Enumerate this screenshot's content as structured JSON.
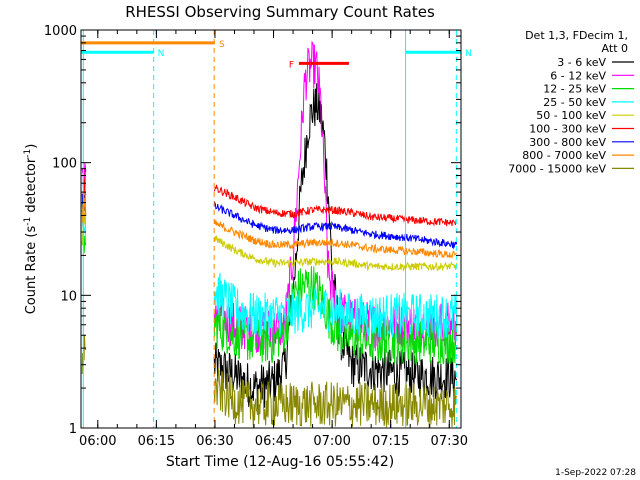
{
  "chart_data": {
    "type": "line",
    "title": "RHESSI Observing Summary Count Rates",
    "xlabel": "Start Time (12-Aug-16 05:55:42)",
    "ylabel_parts": [
      "Count Rate (s",
      "-1",
      " detector",
      "-1",
      ")"
    ],
    "yscale": "log",
    "ylim": [
      1,
      1000
    ],
    "xlim_minutes": [
      355.7,
      453
    ],
    "x_ticks": [
      {
        "label": "06:00",
        "min": 360
      },
      {
        "label": "06:15",
        "min": 375
      },
      {
        "label": "06:30",
        "min": 390
      },
      {
        "label": "06:45",
        "min": 405
      },
      {
        "label": "07:00",
        "min": 420
      },
      {
        "label": "07:15",
        "min": 435
      },
      {
        "label": "07:30",
        "min": 450
      }
    ],
    "y_ticks": [
      {
        "label": "1",
        "value": 1
      },
      {
        "label": "10",
        "value": 10
      },
      {
        "label": "100",
        "value": 100
      },
      {
        "label": "1000",
        "value": 1000
      }
    ],
    "legend": {
      "placement": "top-right",
      "header": [
        "Det 1,3, FDecim 1,",
        "Att 0"
      ],
      "entries": [
        {
          "label": "3 - 6 keV",
          "color": "#000000"
        },
        {
          "label": "6 - 12 keV",
          "color": "#ff00ff"
        },
        {
          "label": "12 - 25 keV",
          "color": "#00dd00"
        },
        {
          "label": "25 - 50 keV",
          "color": "#00ffff"
        },
        {
          "label": "50 - 100 keV",
          "color": "#cccc00"
        },
        {
          "label": "100 - 300 keV",
          "color": "#ff0000"
        },
        {
          "label": "300 - 800 keV",
          "color": "#0000ff"
        },
        {
          "label": "800 - 7000 keV",
          "color": "#ff8800"
        },
        {
          "label": "7000 - 15000 keV",
          "color": "#888800"
        }
      ]
    },
    "gaps_minutes": [
      [
        357.0,
        389.8
      ],
      [
        452.0,
        453
      ]
    ],
    "series": [
      {
        "name": "3 - 6 keV",
        "color": "#000000",
        "points": [
          [
            389.8,
            3
          ],
          [
            395,
            2.5
          ],
          [
            400,
            2
          ],
          [
            405,
            2.2
          ],
          [
            408,
            3
          ],
          [
            410,
            10
          ],
          [
            412,
            60
          ],
          [
            414,
            200
          ],
          [
            415,
            250
          ],
          [
            416,
            270
          ],
          [
            417,
            240
          ],
          [
            418,
            150
          ],
          [
            419,
            60
          ],
          [
            420,
            15
          ],
          [
            422,
            5
          ],
          [
            425,
            3
          ],
          [
            430,
            2.8
          ],
          [
            440,
            2.5
          ],
          [
            452,
            2.4
          ]
        ]
      },
      {
        "name": "6 - 12 keV",
        "color": "#ff00ff",
        "points": [
          [
            389.8,
            7
          ],
          [
            395,
            6
          ],
          [
            400,
            5.5
          ],
          [
            405,
            5.5
          ],
          [
            408,
            6
          ],
          [
            410,
            20
          ],
          [
            412,
            150
          ],
          [
            413,
            400
          ],
          [
            414,
            520
          ],
          [
            415,
            550
          ],
          [
            416,
            520
          ],
          [
            417,
            300
          ],
          [
            418,
            80
          ],
          [
            419,
            15
          ],
          [
            421,
            8
          ],
          [
            425,
            6.5
          ],
          [
            430,
            6
          ],
          [
            440,
            6
          ],
          [
            452,
            6
          ]
        ]
      },
      {
        "name": "12 - 25 keV",
        "color": "#00dd00",
        "points": [
          [
            389.8,
            6
          ],
          [
            395,
            5
          ],
          [
            400,
            4.5
          ],
          [
            405,
            4.5
          ],
          [
            408,
            5.5
          ],
          [
            410,
            10
          ],
          [
            413,
            12
          ],
          [
            415,
            12
          ],
          [
            417,
            10
          ],
          [
            419,
            7
          ],
          [
            422,
            5
          ],
          [
            430,
            4.5
          ],
          [
            440,
            4.5
          ],
          [
            452,
            4.5
          ]
        ]
      },
      {
        "name": "25 - 50 keV",
        "color": "#00ffff",
        "points": [
          [
            389.8,
            11
          ],
          [
            395,
            8
          ],
          [
            400,
            7
          ],
          [
            405,
            7
          ],
          [
            410,
            7.5
          ],
          [
            415,
            8
          ],
          [
            420,
            8
          ],
          [
            425,
            7
          ],
          [
            430,
            7
          ],
          [
            440,
            7
          ],
          [
            452,
            7
          ]
        ]
      },
      {
        "name": "50 - 100 keV",
        "color": "#cccc00",
        "points": [
          [
            389.8,
            27
          ],
          [
            395,
            22
          ],
          [
            400,
            19
          ],
          [
            405,
            17.5
          ],
          [
            410,
            17.5
          ],
          [
            415,
            18
          ],
          [
            420,
            18
          ],
          [
            425,
            17.5
          ],
          [
            430,
            16.5
          ],
          [
            440,
            16.5
          ],
          [
            452,
            16.5
          ]
        ]
      },
      {
        "name": "100 - 300 keV",
        "color": "#ff0000",
        "points": [
          [
            389.8,
            65
          ],
          [
            395,
            55
          ],
          [
            400,
            46
          ],
          [
            405,
            42
          ],
          [
            410,
            41
          ],
          [
            415,
            44
          ],
          [
            420,
            44
          ],
          [
            425,
            42
          ],
          [
            430,
            39
          ],
          [
            440,
            37
          ],
          [
            452,
            35
          ]
        ]
      },
      {
        "name": "300 - 800 keV",
        "color": "#0000ff",
        "points": [
          [
            389.8,
            47
          ],
          [
            395,
            40
          ],
          [
            400,
            34
          ],
          [
            405,
            31
          ],
          [
            410,
            31
          ],
          [
            415,
            33
          ],
          [
            420,
            33
          ],
          [
            425,
            31
          ],
          [
            430,
            29
          ],
          [
            440,
            27
          ],
          [
            452,
            24
          ]
        ]
      },
      {
        "name": "800 - 7000 keV",
        "color": "#ff8800",
        "points": [
          [
            389.8,
            35
          ],
          [
            395,
            30
          ],
          [
            400,
            26
          ],
          [
            405,
            24
          ],
          [
            410,
            24
          ],
          [
            415,
            25
          ],
          [
            420,
            25
          ],
          [
            425,
            24
          ],
          [
            430,
            22.5
          ],
          [
            440,
            21.5
          ],
          [
            452,
            20
          ]
        ]
      },
      {
        "name": "7000 - 15000 keV",
        "color": "#888800",
        "points": [
          [
            389.8,
            2
          ],
          [
            395,
            1.6
          ],
          [
            400,
            1.5
          ],
          [
            405,
            1.5
          ],
          [
            410,
            1.5
          ],
          [
            420,
            1.5
          ],
          [
            430,
            1.5
          ],
          [
            440,
            1.5
          ],
          [
            452,
            1.5
          ]
        ]
      }
    ],
    "early_segment": {
      "x": [
        356,
        357
      ],
      "values": {
        "3 - 6 keV": [
          40,
          50
        ],
        "6 - 12 keV": [
          70,
          80
        ],
        "12 - 25 keV": [
          25,
          30
        ],
        "25 - 50 keV": [
          30,
          35
        ],
        "50 - 100 keV": [
          28,
          33
        ],
        "100 - 300 keV": [
          60,
          80
        ],
        "300 - 800 keV": [
          45,
          55
        ],
        "800 - 7000 keV": [
          40,
          50
        ],
        "7000 - 15000 keV": [
          3,
          5
        ]
      }
    },
    "flag_bars": [
      {
        "label": "S",
        "color": "#ff8800",
        "x0": 355.7,
        "x1": 390,
        "y": 800
      },
      {
        "label": "N",
        "color": "#00ffff",
        "x0": 355.7,
        "x1": 374.3,
        "y": 680
      },
      {
        "label": "N",
        "color": "#00ffff",
        "x0": 438.8,
        "x1": 453,
        "y": 680
      },
      {
        "label": "F",
        "color": "#ff0000",
        "x0": 411.5,
        "x1": 424.3,
        "y": 560
      }
    ],
    "vertical_markers": [
      {
        "min": 356.3,
        "color": "#00ffff",
        "style": "solid"
      },
      {
        "min": 374.3,
        "color": "#00ffff",
        "style": "dashed"
      },
      {
        "min": 389.8,
        "color": "#ff8800",
        "style": "dashed"
      },
      {
        "min": 438.8,
        "color": "#00ffff",
        "style": "solid"
      },
      {
        "min": 451.8,
        "color": "#00ffff",
        "style": "dashed"
      }
    ],
    "footer_date": "1-Sep-2022 07:28"
  }
}
